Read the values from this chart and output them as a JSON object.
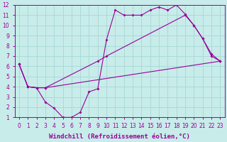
{
  "xlabel": "Windchill (Refroidissement éolien,°C)",
  "xlim": [
    -0.5,
    23.5
  ],
  "ylim": [
    1,
    12
  ],
  "xticks": [
    0,
    1,
    2,
    3,
    4,
    5,
    6,
    7,
    8,
    9,
    10,
    11,
    12,
    13,
    14,
    15,
    16,
    17,
    18,
    19,
    20,
    21,
    22,
    23
  ],
  "yticks": [
    1,
    2,
    3,
    4,
    5,
    6,
    7,
    8,
    9,
    10,
    11,
    12
  ],
  "bg_color": "#c8ecea",
  "grid_color": "#aadad7",
  "line_color": "#990099",
  "line1_x": [
    0,
    1,
    2,
    3,
    4,
    5,
    6,
    7,
    8,
    9,
    10,
    11,
    12,
    13,
    14,
    15,
    16,
    17,
    18,
    19,
    20,
    21,
    22,
    23
  ],
  "line1_y": [
    6.2,
    4.0,
    3.9,
    2.5,
    1.9,
    1.0,
    1.0,
    1.5,
    3.5,
    3.8,
    8.6,
    11.5,
    11.0,
    11.0,
    11.0,
    11.5,
    11.8,
    11.5,
    12.0,
    11.1,
    10.0,
    8.7,
    7.0,
    6.5
  ],
  "line2_x": [
    0,
    1,
    2,
    3,
    9,
    10,
    19,
    20,
    21,
    22,
    23
  ],
  "line2_y": [
    6.2,
    4.0,
    3.9,
    3.9,
    6.5,
    7.0,
    11.0,
    10.0,
    8.7,
    7.2,
    6.5
  ],
  "line3_x": [
    0,
    1,
    2,
    3,
    23
  ],
  "line3_y": [
    6.2,
    4.0,
    3.9,
    3.9,
    6.5
  ],
  "tick_fontsize": 5.5,
  "label_fontsize": 6.5
}
